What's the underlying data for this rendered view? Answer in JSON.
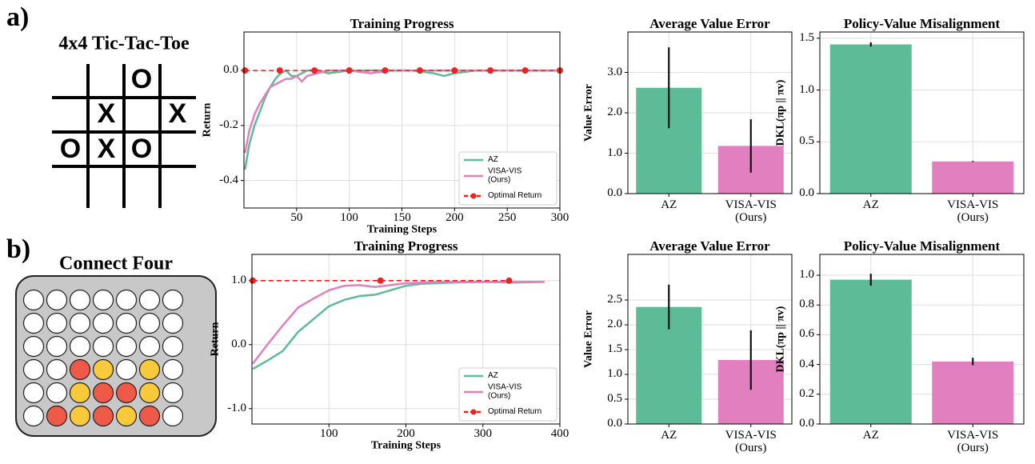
{
  "panels": [
    {
      "label": "a)",
      "game": "4x4 Tic-Tac-Toe",
      "board": [
        [
          null,
          null,
          "O",
          null
        ],
        [
          null,
          "X",
          null,
          "X"
        ],
        [
          "O",
          "X",
          "O",
          null
        ],
        [
          null,
          null,
          null,
          null
        ]
      ]
    },
    {
      "label": "b)",
      "game": "Connect Four"
    }
  ],
  "chart_data": [
    {
      "type": "line",
      "title": "Training Progress",
      "x_label": "Training Steps",
      "y_label": "Return",
      "x": [
        1,
        5,
        10,
        15,
        20,
        25,
        30,
        35,
        40,
        45,
        50,
        55,
        60,
        70,
        80,
        100,
        120,
        140,
        160,
        180,
        190,
        200,
        220,
        240,
        260,
        280,
        300
      ],
      "series": [
        {
          "name": "AZ",
          "color": "#5dbb98",
          "values": [
            -0.36,
            -0.27,
            -0.2,
            -0.15,
            -0.1,
            -0.06,
            -0.03,
            -0.01,
            0.0,
            -0.02,
            -0.02,
            -0.01,
            0.0,
            0.0,
            -0.01,
            0.0,
            0.0,
            0.0,
            0.0,
            -0.01,
            -0.02,
            -0.01,
            0.0,
            0.0,
            0.0,
            0.0,
            0.0
          ]
        },
        {
          "name": "VISA-VIS\n(Ours)",
          "color": "#e17fbf",
          "values": [
            -0.3,
            -0.22,
            -0.16,
            -0.12,
            -0.09,
            -0.06,
            -0.05,
            -0.04,
            -0.03,
            -0.03,
            -0.02,
            -0.04,
            -0.02,
            -0.01,
            0.0,
            0.0,
            -0.01,
            0.0,
            0.0,
            0.0,
            0.0,
            0.0,
            0.0,
            0.0,
            0.0,
            0.0,
            0.0
          ]
        },
        {
          "name": "Optimal Return",
          "color": "#ee2222",
          "linestyle": "dashed",
          "marker": "o",
          "x": [
            1,
            34,
            67,
            100,
            134,
            167,
            200,
            234,
            267,
            300
          ],
          "values": [
            0,
            0,
            0,
            0,
            0,
            0,
            0,
            0,
            0,
            0
          ]
        }
      ],
      "xlim": [
        0,
        300
      ],
      "xticks": [
        50,
        100,
        150,
        200,
        250,
        300
      ],
      "ylim": [
        -0.5,
        0.14
      ],
      "yticks": [
        {
          "value": 0,
          "label": "0.0"
        },
        {
          "value": -0.2,
          "label": "-0.2"
        },
        {
          "value": -0.4,
          "label": "-0.4"
        }
      ],
      "grid": true,
      "legend": "lower right"
    },
    {
      "type": "bar",
      "title": "Average Value Error",
      "y_label": "Value Error",
      "categories": [
        "AZ",
        "VISA-VIS\n(Ours)"
      ],
      "values": [
        2.62,
        1.18
      ],
      "errors": [
        1.0,
        0.66
      ],
      "colors": [
        "#5dbb98",
        "#e17fbf"
      ],
      "ylim": [
        0,
        4.0
      ],
      "yticks": [
        {
          "value": 0,
          "label": "0.0"
        },
        {
          "value": 1,
          "label": "1.0"
        },
        {
          "value": 2,
          "label": "2.0"
        },
        {
          "value": 3,
          "label": "3.0"
        }
      ],
      "grid": true
    },
    {
      "type": "bar",
      "title": "Policy-Value Misalignment",
      "y_label": "DKL(πp || πv)",
      "categories": [
        "AZ",
        "VISA-VIS\n(Ours)"
      ],
      "values": [
        1.44,
        0.31
      ],
      "errors": [
        0.02,
        0.005
      ],
      "colors": [
        "#5dbb98",
        "#e17fbf"
      ],
      "ylim": [
        0,
        1.56
      ],
      "yticks": [
        {
          "value": 0,
          "label": "0.0"
        },
        0.5,
        {
          "value": 1,
          "label": "1.0"
        },
        1.5
      ],
      "grid": true
    },
    {
      "type": "line",
      "title": "Training Progress",
      "x_label": "Training Steps",
      "y_label": "Return",
      "x": [
        1,
        20,
        40,
        60,
        80,
        100,
        120,
        140,
        160,
        180,
        200,
        220,
        240,
        260,
        300,
        340,
        380
      ],
      "series": [
        {
          "name": "AZ",
          "color": "#5dbb98",
          "values": [
            -0.38,
            -0.25,
            -0.1,
            0.2,
            0.4,
            0.6,
            0.7,
            0.76,
            0.78,
            0.85,
            0.92,
            0.95,
            0.96,
            0.97,
            0.98,
            0.97,
            0.98
          ]
        },
        {
          "name": "VISA-VIS\n(Ours)",
          "color": "#e17fbf",
          "values": [
            -0.3,
            0.0,
            0.3,
            0.58,
            0.72,
            0.85,
            0.92,
            0.93,
            0.9,
            0.93,
            0.96,
            0.97,
            0.98,
            0.98,
            0.98,
            0.98,
            0.98
          ]
        },
        {
          "name": "Optimal Return",
          "color": "#ee2222",
          "linestyle": "dashed",
          "marker": "o",
          "x": [
            1,
            167,
            334
          ],
          "values": [
            1,
            1,
            1
          ]
        }
      ],
      "xlim": [
        0,
        400
      ],
      "xticks": [
        100,
        200,
        300,
        400
      ],
      "ylim": [
        -1.24,
        1.41
      ],
      "yticks": [
        {
          "value": 1,
          "label": "1.0"
        },
        {
          "value": 0,
          "label": "0.0"
        },
        {
          "value": -1,
          "label": "-1.0"
        }
      ],
      "grid": true,
      "legend": "lower right"
    },
    {
      "type": "bar",
      "title": "Average Value Error",
      "y_label": "Value Error",
      "categories": [
        "AZ",
        "VISA-VIS\n(Ours)"
      ],
      "values": [
        2.36,
        1.29
      ],
      "errors": [
        0.45,
        0.6
      ],
      "colors": [
        "#5dbb98",
        "#e17fbf"
      ],
      "ylim": [
        0,
        3.42
      ],
      "yticks": [
        {
          "value": 0,
          "label": "0.0"
        },
        0.5,
        {
          "value": 1,
          "label": "1.0"
        },
        1.5,
        {
          "value": 2,
          "label": "2.0"
        },
        2.5
      ],
      "grid": true
    },
    {
      "type": "bar",
      "title": "Policy-Value Misalignment",
      "y_label": "DKL(πp || πv)",
      "categories": [
        "AZ",
        "VISA-VIS\n(Ours)"
      ],
      "values": [
        0.97,
        0.42
      ],
      "errors": [
        0.04,
        0.025
      ],
      "colors": [
        "#5dbb98",
        "#e17fbf"
      ],
      "ylim": [
        0,
        1.14
      ],
      "yticks": [
        {
          "value": 0,
          "label": "0.0"
        },
        0.2,
        0.4,
        0.6,
        0.8,
        {
          "value": 1,
          "label": "1.0"
        }
      ],
      "grid": true
    }
  ]
}
